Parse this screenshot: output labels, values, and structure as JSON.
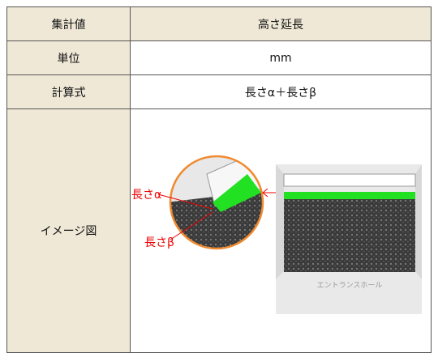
{
  "table": {
    "rows": [
      [
        "集計値",
        "高さ延長"
      ],
      [
        "単位",
        "mm"
      ],
      [
        "計算式",
        "長さα＋長さβ"
      ],
      [
        "イメージ図"
      ]
    ]
  },
  "image": {
    "labels": [
      "長さα",
      "長さβ"
    ],
    "sign": "エントランスホール"
  }
}
